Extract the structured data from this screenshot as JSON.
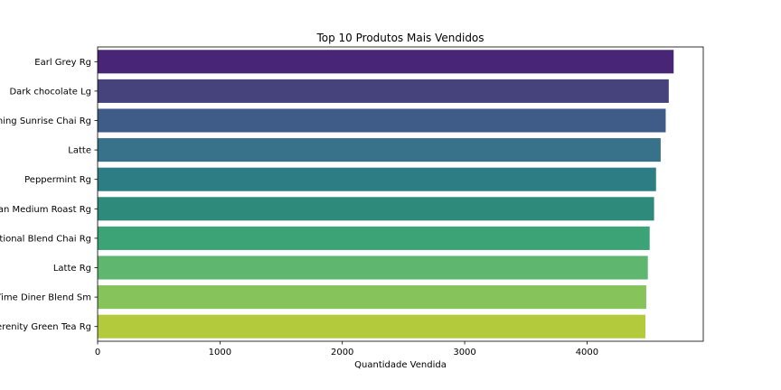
{
  "chart_data": {
    "type": "bar",
    "orientation": "horizontal",
    "title": "Top 10 Produtos Mais Vendidos",
    "xlabel": "Quantidade Vendida",
    "ylabel": "",
    "xlim": [
      0,
      4950
    ],
    "xticks": [
      0,
      1000,
      2000,
      3000,
      4000
    ],
    "grid": false,
    "categories": [
      "Earl Grey Rg",
      "Dark chocolate Lg",
      "Morning Sunrise Chai Rg",
      "Latte",
      "Peppermint Rg",
      "Columbian Medium Roast Rg",
      "Traditional Blend Chai Rg",
      "Latte Rg",
      "Our Old Time Diner Blend Sm",
      "Serenity Green Tea Rg"
    ],
    "values": [
      4708,
      4668,
      4643,
      4602,
      4564,
      4548,
      4512,
      4497,
      4484,
      4477
    ],
    "colors": [
      "#482576",
      "#46427c",
      "#3f5c88",
      "#37718a",
      "#2d7e84",
      "#2e8b7b",
      "#3ba376",
      "#5fb66f",
      "#86c35a",
      "#b2ca3c"
    ]
  }
}
